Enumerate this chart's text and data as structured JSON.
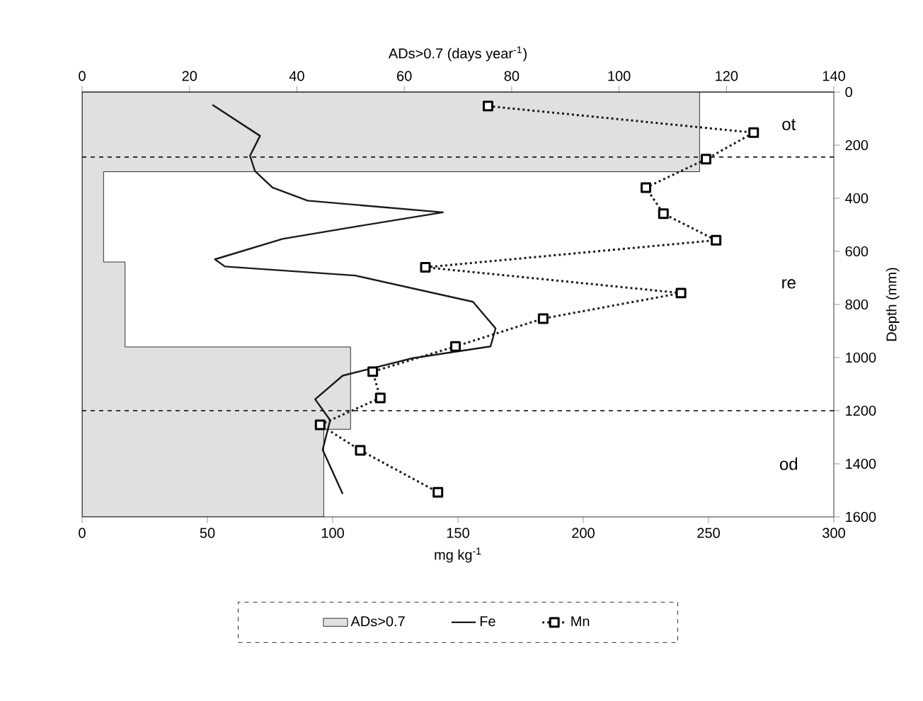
{
  "chart_data": {
    "type": "line",
    "orientation": "horizontal",
    "xlabel": "mg kg$^{-1}$",
    "x2label": "ADs>0.7 (days year$^{-1}$)",
    "ylabel": "Depth (mm)",
    "xlim": [
      0,
      300
    ],
    "xticks": [
      0,
      50,
      100,
      150,
      200,
      250,
      300
    ],
    "x2lim": [
      0,
      140
    ],
    "x2ticks": [
      0,
      20,
      40,
      60,
      80,
      100,
      120,
      140
    ],
    "ylim": [
      1600,
      0
    ],
    "yticks": [
      0,
      200,
      400,
      600,
      800,
      1000,
      1200,
      1400,
      1600
    ],
    "legend": "bottom",
    "grid": false,
    "series": [
      {
        "name": "ADs>0.7",
        "type": "area",
        "axis": "x2",
        "color": "#e0e0e0",
        "x": [
          0,
          300,
          300,
          640,
          640,
          960,
          960,
          1270,
          1270,
          1600
        ],
        "values": [
          115,
          115,
          4,
          4,
          8,
          8,
          50,
          50,
          45,
          45
        ]
      },
      {
        "name": "Fe",
        "color": "#1a1a1a",
        "line_style": "solid",
        "marker": "none",
        "x": [
          48,
          165,
          240,
          298,
          360,
          409,
          453,
          507,
          553,
          630,
          657,
          691,
          790,
          890,
          958,
          1002,
          1068,
          1157,
          1236,
          1347,
          1513
        ],
        "values": [
          52,
          71,
          67,
          69,
          76,
          90,
          144,
          109,
          80,
          53,
          57,
          109,
          156,
          165,
          163,
          132,
          104,
          93,
          99,
          96,
          104
        ]
      },
      {
        "name": "Mn",
        "color": "#1a1a1a",
        "line_style": "dotted",
        "marker": "square",
        "x": [
          53,
          153,
          253,
          360,
          458,
          558,
          660,
          757,
          853,
          958,
          1053,
          1152,
          1253,
          1349,
          1507
        ],
        "values": [
          162,
          268,
          249,
          225,
          232,
          253,
          137,
          239,
          184,
          149,
          116,
          119,
          95,
          111,
          142
        ]
      }
    ],
    "ref_lines": [
      {
        "axis": "y",
        "value": 245,
        "line_style": "dashed"
      },
      {
        "axis": "y",
        "value": 1200,
        "line_style": "dashed"
      }
    ],
    "annotations": [
      "ot",
      "re",
      "od"
    ]
  }
}
